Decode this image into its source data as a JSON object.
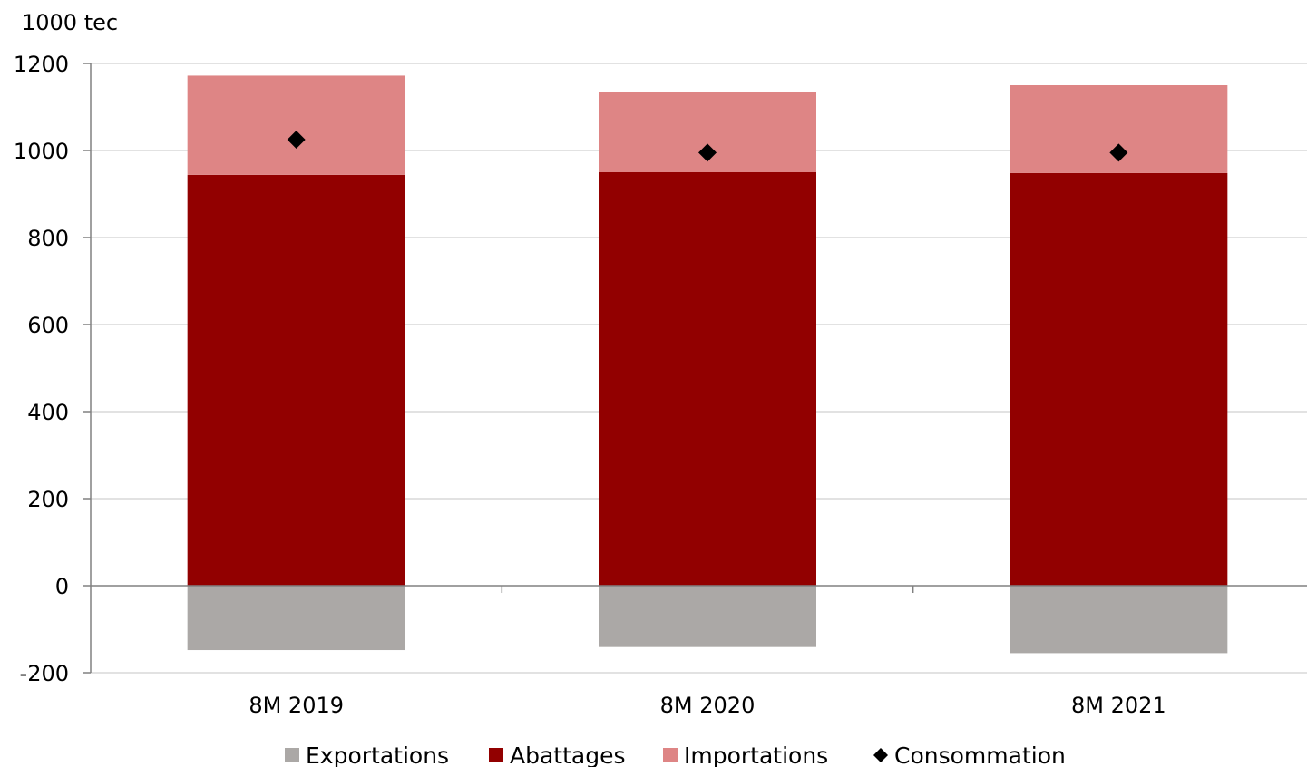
{
  "chart_data": {
    "type": "bar",
    "stacked": true,
    "ylabel": "1000 tec",
    "ylim": [
      -200,
      1200
    ],
    "yticks": [
      -200,
      0,
      200,
      400,
      600,
      800,
      1000,
      1200
    ],
    "grid": true,
    "legend_position": "bottom",
    "categories": [
      "8M 2019",
      "8M 2020",
      "8M 2021"
    ],
    "series": [
      {
        "name": "Exportations",
        "kind": "bar",
        "color": "#ABA8A6",
        "values": [
          -148,
          -141,
          -155
        ]
      },
      {
        "name": "Abattages",
        "kind": "bar",
        "color": "#920000",
        "values": [
          944,
          950,
          948
        ]
      },
      {
        "name": "Importations",
        "kind": "bar",
        "color": "#DE8585",
        "values": [
          228,
          185,
          202
        ]
      },
      {
        "name": "Consommation",
        "kind": "marker",
        "marker": "diamond",
        "color": "#000000",
        "values": [
          1025,
          995,
          995
        ]
      }
    ]
  }
}
